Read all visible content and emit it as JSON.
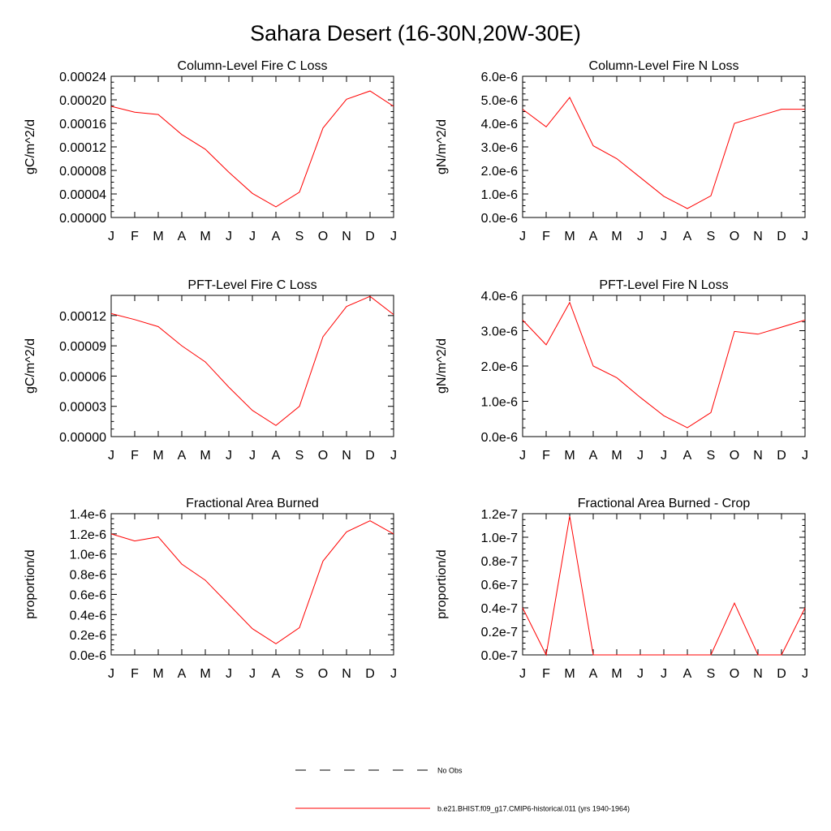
{
  "figure": {
    "title": "Sahara Desert (16-30N,20W-30E)"
  },
  "legend": {
    "entries": [
      {
        "label": "No Obs",
        "style": "dashed",
        "color": "#000000"
      },
      {
        "label": "b.e21.BHIST.f09_g17.CMIP6-historical.011 (yrs 1940-1964)",
        "style": "solid",
        "color": "#ff0000"
      }
    ]
  },
  "chart_data": [
    {
      "type": "line",
      "title": "Column-Level Fire C Loss",
      "xlabel": "",
      "ylabel": "gC/m^2/d",
      "categories": [
        "J",
        "F",
        "M",
        "A",
        "M",
        "J",
        "J",
        "A",
        "S",
        "O",
        "N",
        "D",
        "J"
      ],
      "ylim": [
        0,
        0.00024
      ],
      "yticks": [
        "0.00000",
        "0.00004",
        "0.00008",
        "0.00012",
        "0.00016",
        "0.00020",
        "0.00024"
      ],
      "series": [
        {
          "color": "#ff0000",
          "values": [
            0.000189,
            0.000179,
            0.000175,
            0.000141,
            0.000116,
            7.7e-05,
            4.1e-05,
            1.8e-05,
            4.3e-05,
            0.000152,
            0.000201,
            0.000215,
            0.000189
          ]
        }
      ]
    },
    {
      "type": "line",
      "title": "Column-Level Fire N Loss",
      "xlabel": "",
      "ylabel": "gN/m^2/d",
      "categories": [
        "J",
        "F",
        "M",
        "A",
        "M",
        "J",
        "J",
        "A",
        "S",
        "O",
        "N",
        "D",
        "J"
      ],
      "ylim": [
        0,
        6e-06
      ],
      "yticks": [
        "0.0e-6",
        "1.0e-6",
        "2.0e-6",
        "3.0e-6",
        "4.0e-6",
        "5.0e-6",
        "6.0e-6"
      ],
      "series": [
        {
          "color": "#ff0000",
          "values": [
            4.6e-06,
            3.85e-06,
            5.1e-06,
            3.05e-06,
            2.5e-06,
            1.7e-06,
            9e-07,
            3.8e-07,
            9.2e-07,
            4e-06,
            4.3e-06,
            4.6e-06,
            4.6e-06
          ]
        }
      ]
    },
    {
      "type": "line",
      "title": "PFT-Level Fire C Loss",
      "xlabel": "",
      "ylabel": "gC/m^2/d",
      "categories": [
        "J",
        "F",
        "M",
        "A",
        "M",
        "J",
        "J",
        "A",
        "S",
        "O",
        "N",
        "D",
        "J"
      ],
      "ylim": [
        0,
        0.00014
      ],
      "yticks": [
        "0.00000",
        "0.00003",
        "0.00006",
        "0.00009",
        "0.00012"
      ],
      "series": [
        {
          "color": "#ff0000",
          "values": [
            0.000122,
            0.000116,
            0.000109,
            9e-05,
            7.4e-05,
            4.9e-05,
            2.6e-05,
            1.1e-05,
            3e-05,
            9.9e-05,
            0.000129,
            0.000139,
            0.000121
          ]
        }
      ]
    },
    {
      "type": "line",
      "title": "PFT-Level Fire N Loss",
      "xlabel": "",
      "ylabel": "gN/m^2/d",
      "categories": [
        "J",
        "F",
        "M",
        "A",
        "M",
        "J",
        "J",
        "A",
        "S",
        "O",
        "N",
        "D",
        "J"
      ],
      "ylim": [
        0,
        4e-06
      ],
      "yticks": [
        "0.0e-6",
        "1.0e-6",
        "2.0e-6",
        "3.0e-6",
        "4.0e-6"
      ],
      "series": [
        {
          "color": "#ff0000",
          "values": [
            3.3e-06,
            2.6e-06,
            3.8e-06,
            2e-06,
            1.67e-06,
            1.11e-06,
            5.9e-07,
            2.5e-07,
            6.8e-07,
            2.98e-06,
            2.9e-06,
            3.1e-06,
            3.3e-06
          ]
        }
      ]
    },
    {
      "type": "line",
      "title": "Fractional Area Burned",
      "xlabel": "",
      "ylabel": "proportion/d",
      "categories": [
        "J",
        "F",
        "M",
        "A",
        "M",
        "J",
        "J",
        "A",
        "S",
        "O",
        "N",
        "D",
        "J"
      ],
      "ylim": [
        0,
        1.4e-06
      ],
      "yticks": [
        "0.0e-6",
        "0.2e-6",
        "0.4e-6",
        "0.6e-6",
        "0.8e-6",
        "1.0e-6",
        "1.2e-6",
        "1.4e-6"
      ],
      "series": [
        {
          "color": "#ff0000",
          "values": [
            1.2e-06,
            1.13e-06,
            1.17e-06,
            9e-07,
            7.4e-07,
            5e-07,
            2.6e-07,
            1.1e-07,
            2.7e-07,
            9.3e-07,
            1.22e-06,
            1.33e-06,
            1.2e-06
          ]
        }
      ]
    },
    {
      "type": "line",
      "title": "Fractional Area Burned - Crop",
      "xlabel": "",
      "ylabel": "proportion/d",
      "categories": [
        "J",
        "F",
        "M",
        "A",
        "M",
        "J",
        "J",
        "A",
        "S",
        "O",
        "N",
        "D",
        "J"
      ],
      "ylim": [
        0,
        1.2e-07
      ],
      "yticks": [
        "0.0e-7",
        "0.2e-7",
        "0.4e-7",
        "0.6e-7",
        "0.8e-7",
        "1.0e-7",
        "1.2e-7"
      ],
      "series": [
        {
          "color": "#ff0000",
          "values": [
            4e-08,
            0,
            1.18e-07,
            0,
            0,
            0,
            0,
            0,
            0,
            4.4e-08,
            0,
            0,
            4e-08
          ]
        }
      ]
    }
  ]
}
